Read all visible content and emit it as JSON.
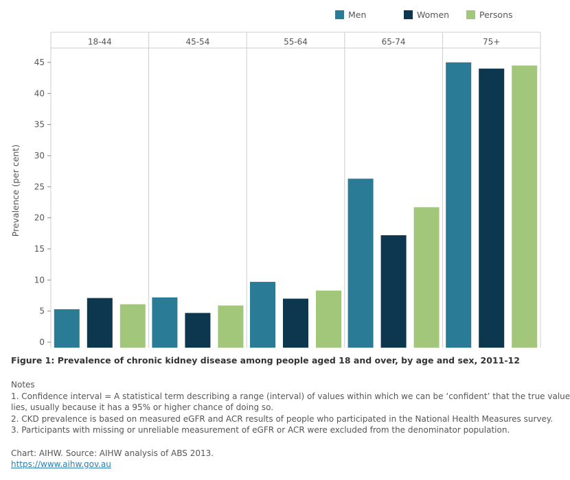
{
  "chart_data": {
    "type": "bar",
    "categories": [
      "18-44",
      "45-54",
      "55-64",
      "65-74",
      "75+"
    ],
    "series": [
      {
        "name": "Men",
        "color": "#2a7b96",
        "values": [
          5.3,
          7.2,
          9.7,
          26.3,
          45.0
        ]
      },
      {
        "name": "Women",
        "color": "#0d374e",
        "values": [
          7.1,
          4.7,
          7.0,
          17.2,
          44.0
        ]
      },
      {
        "name": "Persons",
        "color": "#a2c77a",
        "values": [
          6.1,
          5.9,
          8.3,
          21.7,
          44.5
        ]
      }
    ],
    "ylabel": "Prevalence (per cent)",
    "ylim": [
      0,
      45
    ],
    "yticks": [
      0,
      5,
      10,
      15,
      20,
      25,
      30,
      35,
      40,
      45
    ],
    "grid": false,
    "legend_position": "top-right",
    "title": "Figure 1: Prevalence of chronic kidney disease among people aged 18 and over, by age and sex, 2011-12"
  },
  "notes": {
    "heading": "Notes",
    "lines": [
      "1. Confidence interval = A statistical term describing a range (interval) of values within which we can be ‘confident’ that the true value",
      "lies, usually because it has a 95% or higher chance of doing so.",
      "2. CKD prevalence is based on measured eGFR and ACR results of people who participated in the National Health Measures survey.",
      "3. Participants with missing or unreliable measurement of eGFR or ACR were excluded from the denominator population."
    ]
  },
  "source": {
    "text": "Chart: AIHW. Source: AIHW analysis of ABS 2013.",
    "link": "https://www.aihw.gov.au"
  }
}
